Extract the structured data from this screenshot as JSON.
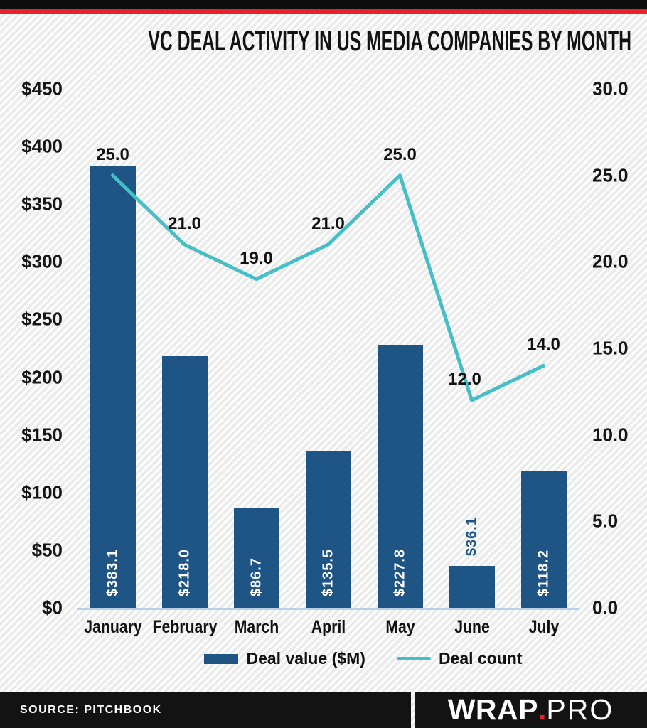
{
  "header": {
    "title": "VC DEAL ACTIVITY IN US MEDIA COMPANIES BY MONTH"
  },
  "chart_data": {
    "type": "combo",
    "title": "VC DEAL ACTIVITY IN US MEDIA COMPANIES BY MONTH",
    "categories": [
      "January",
      "February",
      "March",
      "April",
      "May",
      "June",
      "July"
    ],
    "series": [
      {
        "name": "Deal value ($M)",
        "type": "bar",
        "axis": "left",
        "color": "#1e5584",
        "values": [
          383.1,
          218.0,
          86.7,
          135.5,
          227.8,
          36.1,
          118.2
        ],
        "labels": [
          "$383.1",
          "$218.0",
          "$86.7",
          "$135.5",
          "$227.8",
          "$36.1",
          "$118.2"
        ]
      },
      {
        "name": "Deal count",
        "type": "line",
        "axis": "right",
        "color": "#45bec5",
        "values": [
          25.0,
          21.0,
          19.0,
          21.0,
          25.0,
          12.0,
          14.0
        ],
        "labels": [
          "25.0",
          "21.0",
          "19.0",
          "21.0",
          "25.0",
          "12.0",
          "14.0"
        ]
      }
    ],
    "left_axis": {
      "min": 0,
      "max": 450,
      "ticks": [
        "$450",
        "$400",
        "$350",
        "$300",
        "$250",
        "$200",
        "$150",
        "$100",
        "$50",
        "$0"
      ]
    },
    "right_axis": {
      "min": 0,
      "max": 30,
      "ticks": [
        "30.0",
        "25.0",
        "20.0",
        "15.0",
        "10.0",
        "5.0",
        "0.0"
      ]
    },
    "grid": false,
    "legend_position": "bottom"
  },
  "footer": {
    "source": "SOURCE: PITCHBOOK",
    "brand": {
      "wrap": "WRAP",
      "dot": ".",
      "pro": "PRO"
    }
  },
  "colors": {
    "bar_blue": "#1e5584",
    "line_teal": "#45bec5",
    "accent_red": "#e8222b",
    "axis_line_blue": "#b9d0e8",
    "footer_black": "#131313",
    "text_black": "#121212",
    "bar_label_white": "#ffffff"
  }
}
